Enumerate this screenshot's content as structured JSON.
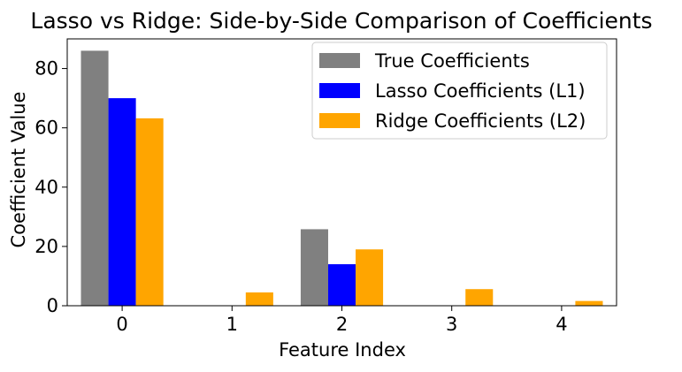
{
  "chart_data": {
    "type": "bar",
    "title": "Lasso vs Ridge: Side-by-Side Comparison of Coefficients",
    "xlabel": "Feature Index",
    "ylabel": "Coefficient Value",
    "categories": [
      "0",
      "1",
      "2",
      "3",
      "4"
    ],
    "x": [
      0,
      1,
      2,
      3,
      4
    ],
    "ylim": [
      0,
      90
    ],
    "yticks": [
      0,
      20,
      40,
      60,
      80
    ],
    "grid": false,
    "legend_position": "top-right",
    "series": [
      {
        "name": "True Coefficients",
        "color": "#808080",
        "values": [
          86,
          0,
          25.8,
          0,
          0
        ]
      },
      {
        "name": "Lasso Coefficients (L1)",
        "color": "#0000ff",
        "values": [
          70,
          0,
          14,
          0,
          0
        ]
      },
      {
        "name": "Ridge Coefficients (L2)",
        "color": "#ffa500",
        "values": [
          63.2,
          4.5,
          19,
          5.6,
          1.6
        ]
      }
    ]
  }
}
